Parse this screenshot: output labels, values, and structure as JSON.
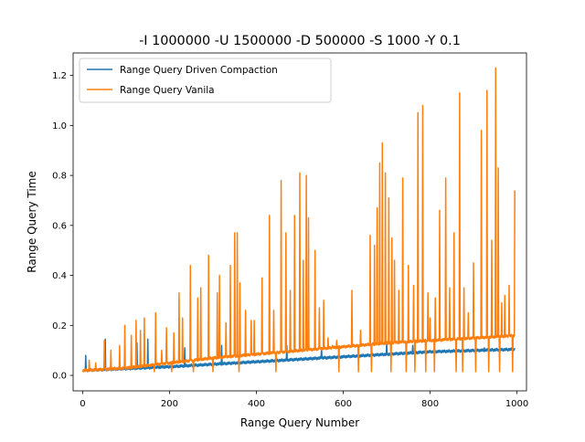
{
  "chart_data": {
    "type": "line",
    "title": "-I 1000000 -U 1500000 -D 500000 -S 1000 -Y 0.1",
    "xlabel": "Range Query Number",
    "ylabel": "Range Query Time",
    "xlim": [
      -22,
      1022
    ],
    "ylim": [
      -0.062,
      1.29
    ],
    "xticks": [
      0,
      200,
      400,
      600,
      800,
      1000
    ],
    "yticks": [
      0.0,
      0.2,
      0.4,
      0.6,
      0.8,
      1.0,
      1.2
    ],
    "xtick_labels": [
      "0",
      "200",
      "400",
      "600",
      "800",
      "1000"
    ],
    "ytick_labels": [
      "0.0",
      "0.2",
      "0.4",
      "0.6",
      "0.8",
      "1.0",
      "1.2"
    ],
    "legend_position": "top-left",
    "grid": false,
    "series": [
      {
        "name": "Range Query Driven Compaction",
        "color": "#1f77b4",
        "baseline": [
          [
            0,
            0.02
          ],
          [
            200,
            0.035
          ],
          [
            400,
            0.055
          ],
          [
            600,
            0.075
          ],
          [
            800,
            0.095
          ],
          [
            1000,
            0.105
          ]
        ],
        "spikes": [
          [
            7,
            0.08
          ],
          [
            52,
            0.145
          ],
          [
            125,
            0.13
          ],
          [
            150,
            0.145
          ],
          [
            235,
            0.11
          ],
          [
            320,
            0.12
          ],
          [
            470,
            0.12
          ],
          [
            550,
            0.11
          ],
          [
            700,
            0.13
          ],
          [
            760,
            0.12
          ],
          [
            860,
            0.1
          ],
          [
            925,
            0.11
          ]
        ]
      },
      {
        "name": "Range Query Vanila",
        "color": "#ff7f0e",
        "baseline": [
          [
            0,
            0.02
          ],
          [
            100,
            0.03
          ],
          [
            200,
            0.05
          ],
          [
            300,
            0.07
          ],
          [
            400,
            0.085
          ],
          [
            500,
            0.1
          ],
          [
            600,
            0.115
          ],
          [
            700,
            0.13
          ],
          [
            800,
            0.14
          ],
          [
            900,
            0.15
          ],
          [
            1000,
            0.16
          ]
        ],
        "spikes": [
          [
            15,
            0.06
          ],
          [
            30,
            0.05
          ],
          [
            50,
            0.14
          ],
          [
            65,
            0.1
          ],
          [
            85,
            0.12
          ],
          [
            97,
            0.2
          ],
          [
            112,
            0.16
          ],
          [
            123,
            0.22
          ],
          [
            133,
            0.18
          ],
          [
            142,
            0.23
          ],
          [
            168,
            0.25
          ],
          [
            182,
            0.1
          ],
          [
            193,
            0.19
          ],
          [
            210,
            0.17
          ],
          [
            222,
            0.33
          ],
          [
            230,
            0.23
          ],
          [
            248,
            0.44
          ],
          [
            265,
            0.31
          ],
          [
            272,
            0.35
          ],
          [
            290,
            0.48
          ],
          [
            310,
            0.33
          ],
          [
            315,
            0.4
          ],
          [
            330,
            0.21
          ],
          [
            340,
            0.44
          ],
          [
            350,
            0.57
          ],
          [
            356,
            0.57
          ],
          [
            362,
            0.37
          ],
          [
            375,
            0.26
          ],
          [
            388,
            0.22
          ],
          [
            395,
            0.22
          ],
          [
            413,
            0.39
          ],
          [
            430,
            0.64
          ],
          [
            440,
            0.26
          ],
          [
            457,
            0.78
          ],
          [
            468,
            0.57
          ],
          [
            478,
            0.34
          ],
          [
            488,
            0.64
          ],
          [
            500,
            0.81
          ],
          [
            508,
            0.46
          ],
          [
            515,
            0.8
          ],
          [
            520,
            0.63
          ],
          [
            535,
            0.5
          ],
          [
            545,
            0.27
          ],
          [
            555,
            0.3
          ],
          [
            565,
            0.15
          ],
          [
            575,
            0.12
          ],
          [
            585,
            0.14
          ],
          [
            620,
            0.34
          ],
          [
            640,
            0.18
          ],
          [
            662,
            0.56
          ],
          [
            672,
            0.52
          ],
          [
            678,
            0.67
          ],
          [
            684,
            0.85
          ],
          [
            690,
            0.93
          ],
          [
            697,
            0.81
          ],
          [
            705,
            0.71
          ],
          [
            712,
            0.55
          ],
          [
            718,
            0.46
          ],
          [
            728,
            0.34
          ],
          [
            737,
            0.79
          ],
          [
            750,
            0.44
          ],
          [
            762,
            0.36
          ],
          [
            772,
            1.05
          ],
          [
            783,
            1.08
          ],
          [
            795,
            0.33
          ],
          [
            800,
            0.23
          ],
          [
            812,
            0.31
          ],
          [
            822,
            0.66
          ],
          [
            836,
            0.79
          ],
          [
            845,
            0.35
          ],
          [
            855,
            0.57
          ],
          [
            868,
            1.13
          ],
          [
            878,
            0.35
          ],
          [
            888,
            0.25
          ],
          [
            900,
            0.45
          ],
          [
            918,
            0.98
          ],
          [
            931,
            1.14
          ],
          [
            942,
            0.54
          ],
          [
            951,
            1.23
          ],
          [
            957,
            0.83
          ],
          [
            965,
            0.29
          ],
          [
            972,
            0.32
          ],
          [
            982,
            0.36
          ],
          [
            995,
            0.74
          ]
        ],
        "dips": [
          [
            165,
            0.015
          ],
          [
            205,
            0.015
          ],
          [
            255,
            0.015
          ],
          [
            300,
            0.015
          ],
          [
            360,
            0.015
          ],
          [
            445,
            0.015
          ],
          [
            500,
            0.015
          ],
          [
            545,
            0.015
          ],
          [
            590,
            0.015
          ],
          [
            635,
            0.015
          ],
          [
            665,
            0.015
          ],
          [
            710,
            0.015
          ],
          [
            745,
            0.015
          ],
          [
            765,
            0.015
          ],
          [
            790,
            0.015
          ],
          [
            810,
            0.015
          ],
          [
            845,
            0.015
          ],
          [
            860,
            0.015
          ],
          [
            875,
            0.015
          ],
          [
            905,
            0.015
          ],
          [
            935,
            0.015
          ],
          [
            960,
            0.015
          ],
          [
            990,
            0.015
          ]
        ]
      }
    ]
  }
}
